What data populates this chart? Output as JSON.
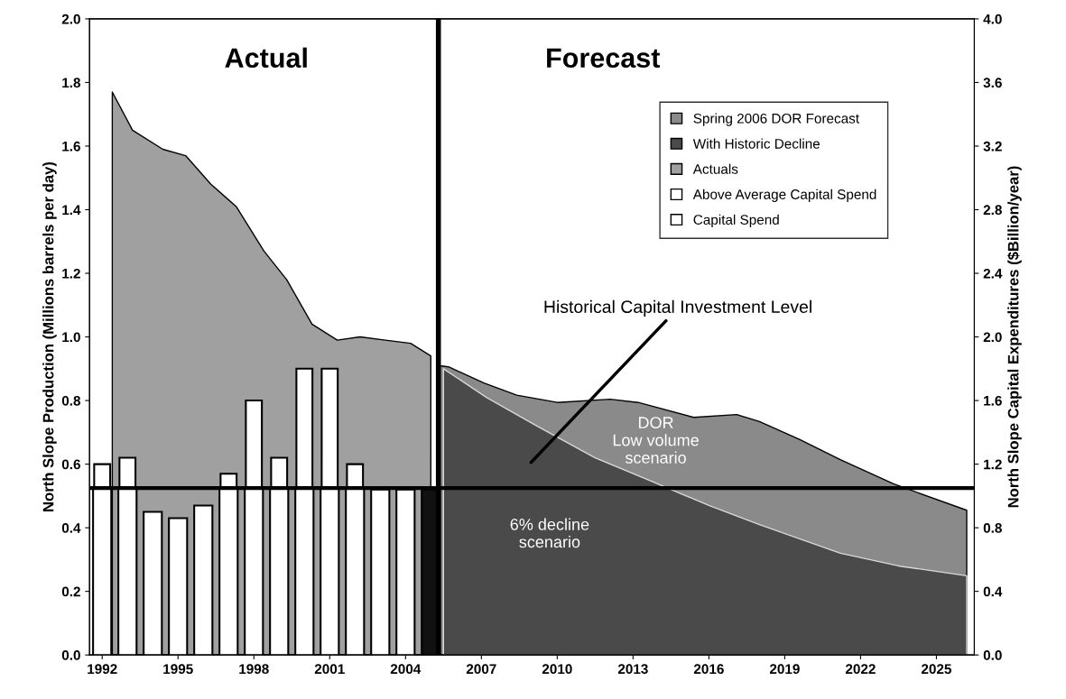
{
  "chart_data": {
    "type": "bar",
    "xlabel": null,
    "ylabel": "North Slope Production (Millions barrels per day)",
    "y2label": "North Slope Capital Expenditures ($Billion/year)",
    "xlim": [
      1991.5,
      2026.5
    ],
    "xticks": [
      1992,
      1995,
      1998,
      2001,
      2004,
      2007,
      2010,
      2013,
      2016,
      2019,
      2022,
      2025
    ],
    "ylim": [
      0.0,
      2.0
    ],
    "yticks": [
      {
        "value": 0,
        "label": "0.0"
      },
      0.2,
      0.4,
      0.6,
      0.8,
      {
        "value": 1,
        "label": "1.0"
      },
      1.2,
      1.4,
      1.6,
      1.8,
      {
        "value": 2,
        "label": "2.0"
      }
    ],
    "y2lim": [
      0.0,
      4.0
    ],
    "y2ticks": [
      {
        "value": 0,
        "label": "0.0"
      },
      0.4,
      0.8,
      1.2,
      1.6,
      {
        "value": 2,
        "label": "2.0"
      },
      2.4,
      2.8,
      3.2,
      3.6,
      {
        "value": 4,
        "label": "4.0"
      }
    ],
    "grid": false,
    "legend": "top right",
    "series": [
      {
        "name": "Spring 2006 DOR Forecast",
        "type": "area",
        "color": "#8a8a8a",
        "x": [
          2005.3,
          2005.7,
          2007.1,
          2008.4,
          2010.0,
          2012.1,
          2013.2,
          2015.4,
          2017.1,
          2018.0,
          2019.6,
          2021.2,
          2023.3,
          2026.2
        ],
        "values": [
          0.91,
          0.906,
          0.855,
          0.817,
          0.794,
          0.804,
          0.794,
          0.747,
          0.756,
          0.734,
          0.677,
          0.614,
          0.538,
          0.455
        ]
      },
      {
        "name": "With Historic Decline",
        "type": "area",
        "color": "#4a4a4a",
        "x": [
          2005.5,
          2007.2,
          2009.2,
          2011.5,
          2013.8,
          2016.0,
          2018.0,
          2021.2,
          2023.5,
          2026.2
        ],
        "values": [
          0.9,
          0.81,
          0.72,
          0.62,
          0.544,
          0.47,
          0.41,
          0.32,
          0.28,
          0.249
        ]
      },
      {
        "name": "Actuals",
        "type": "area",
        "color": "#a0a0a0",
        "x": [
          1992.4,
          1993.2,
          1994.4,
          1995.3,
          1996.3,
          1997.3,
          1998.4,
          1999.3,
          2000.3,
          2001.3,
          2002.2,
          2003.2,
          2004.2,
          2005.0
        ],
        "values": [
          1.77,
          1.65,
          1.59,
          1.57,
          1.48,
          1.41,
          1.27,
          1.18,
          1.04,
          0.99,
          1.0,
          0.99,
          0.98,
          0.94
        ]
      },
      {
        "name": "Capital Spend",
        "axis": "y2",
        "color": "#ffffff",
        "x": [
          1992,
          1993,
          1994,
          1995,
          1996,
          1997,
          1998,
          1999,
          2000,
          2001,
          2002,
          2003,
          2004,
          2005
        ],
        "values": [
          1.05,
          1.05,
          0.9,
          0.86,
          0.94,
          1.05,
          1.05,
          1.05,
          1.05,
          1.05,
          1.05,
          1.04,
          1.04,
          1.04
        ],
        "colors": [
          "#ffffff",
          "#ffffff",
          "#ffffff",
          "#ffffff",
          "#ffffff",
          "#ffffff",
          "#ffffff",
          "#ffffff",
          "#ffffff",
          "#ffffff",
          "#ffffff",
          "#ffffff",
          "#ffffff",
          "#111111"
        ]
      },
      {
        "name": "Above Average Capital Spend",
        "axis": "y2",
        "color": "#ffffff",
        "x": [
          1992,
          1993,
          1994,
          1995,
          1996,
          1997,
          1998,
          1999,
          2000,
          2001,
          2002
        ],
        "base": [
          1.05,
          1.05,
          null,
          null,
          null,
          1.05,
          1.05,
          1.05,
          1.05,
          1.05,
          1.05
        ],
        "values": [
          0.15,
          0.19,
          null,
          null,
          null,
          0.09,
          0.55,
          0.19,
          0.75,
          0.75,
          0.15
        ]
      }
    ],
    "ref_lines": [
      {
        "axis": "y2",
        "value": 1.05,
        "label": null,
        "color": "#000000"
      },
      {
        "axis": "x",
        "value": 2005.3,
        "label": null,
        "color": "#000000"
      }
    ],
    "annotations": [
      "Actual",
      "Forecast",
      "Historical Capital Investment Level",
      "DOR\nLow volume\nscenario",
      "6% decline\nscenario"
    ]
  }
}
